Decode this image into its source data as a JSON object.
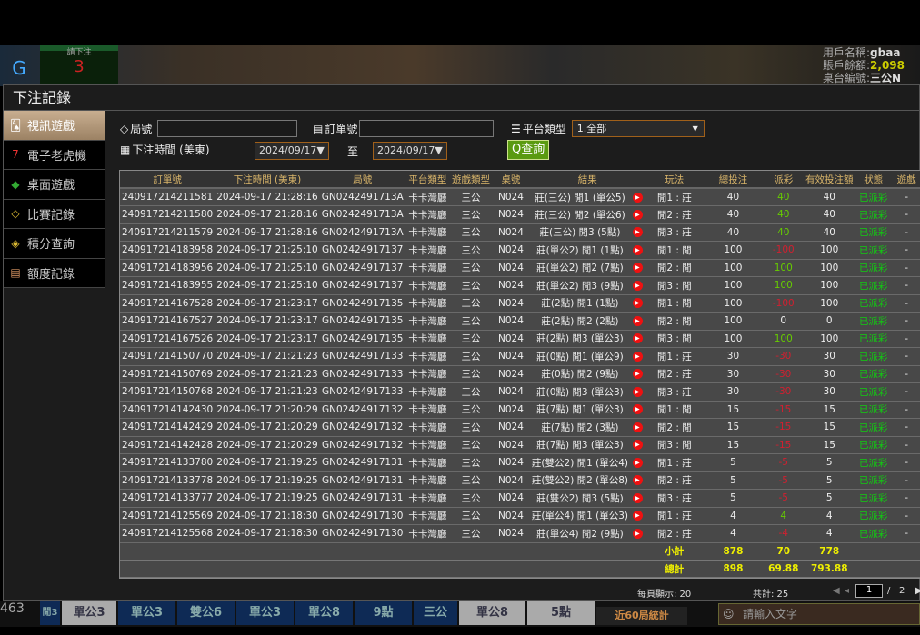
{
  "background": {
    "bet_label": "請下注",
    "bet_count": "3",
    "user_name_label": "用戶名稱:",
    "user_name": "gbaa",
    "balance_label": "賬戶餘額:",
    "balance": "2,098",
    "table_label": "桌台編號:",
    "table": "三公N"
  },
  "modal": {
    "title": "下注記錄"
  },
  "sidebar": {
    "items": [
      {
        "label": "視訊遊戲",
        "icon": "cards-icon"
      },
      {
        "label": "電子老虎機",
        "icon": "slot-777-icon"
      },
      {
        "label": "桌面遊戲",
        "icon": "dice-icon"
      },
      {
        "label": "比賽記錄",
        "icon": "ticket-icon"
      },
      {
        "label": "積分查詢",
        "icon": "diamond-icon"
      },
      {
        "label": "額度記錄",
        "icon": "document-icon"
      }
    ]
  },
  "filters": {
    "round_label": "局號",
    "order_label": "訂單號",
    "platform_label": "平台類型",
    "platform_value": "1.全部",
    "time_label": "下注時間 (美東)",
    "date_from": "2024/09/17",
    "to_label": "至",
    "date_to": "2024/09/17",
    "query_label": "查詢"
  },
  "table": {
    "headers": [
      "訂單號",
      "下注時間 (美東)",
      "局號",
      "平台類型",
      "遊戲類型",
      "桌號",
      "結果",
      "玩法",
      "總投注",
      "派彩",
      "有效投注額",
      "狀態",
      "遊戲"
    ],
    "rows": [
      [
        "240917214211581",
        "2024-09-17 21:28:16",
        "GN0242491713A",
        "卡卡灣廳",
        "三公",
        "N024",
        "莊(三公) 閒1 (單公5)",
        "閒1 : 莊",
        "40",
        "40",
        "40",
        "已派彩",
        "-"
      ],
      [
        "240917214211580",
        "2024-09-17 21:28:16",
        "GN0242491713A",
        "卡卡灣廳",
        "三公",
        "N024",
        "莊(三公) 閒2 (單公6)",
        "閒2 : 莊",
        "40",
        "40",
        "40",
        "已派彩",
        "-"
      ],
      [
        "240917214211579",
        "2024-09-17 21:28:16",
        "GN0242491713A",
        "卡卡灣廳",
        "三公",
        "N024",
        "莊(三公) 閒3 (5點)",
        "閒3 : 莊",
        "40",
        "40",
        "40",
        "已派彩",
        "-"
      ],
      [
        "240917214183958",
        "2024-09-17 21:25:10",
        "GN02424917137",
        "卡卡灣廳",
        "三公",
        "N024",
        "莊(單公2) 閒1 (1點)",
        "閒1 : 閒",
        "100",
        "-100",
        "100",
        "已派彩",
        "-"
      ],
      [
        "240917214183956",
        "2024-09-17 21:25:10",
        "GN02424917137",
        "卡卡灣廳",
        "三公",
        "N024",
        "莊(單公2) 閒2 (7點)",
        "閒2 : 閒",
        "100",
        "100",
        "100",
        "已派彩",
        "-"
      ],
      [
        "240917214183955",
        "2024-09-17 21:25:10",
        "GN02424917137",
        "卡卡灣廳",
        "三公",
        "N024",
        "莊(單公2) 閒3 (9點)",
        "閒3 : 閒",
        "100",
        "100",
        "100",
        "已派彩",
        "-"
      ],
      [
        "240917214167528",
        "2024-09-17 21:23:17",
        "GN02424917135",
        "卡卡灣廳",
        "三公",
        "N024",
        "莊(2點) 閒1 (1點)",
        "閒1 : 閒",
        "100",
        "-100",
        "100",
        "已派彩",
        "-"
      ],
      [
        "240917214167527",
        "2024-09-17 21:23:17",
        "GN02424917135",
        "卡卡灣廳",
        "三公",
        "N024",
        "莊(2點) 閒2 (2點)",
        "閒2 : 閒",
        "100",
        "0",
        "0",
        "已派彩",
        "-"
      ],
      [
        "240917214167526",
        "2024-09-17 21:23:17",
        "GN02424917135",
        "卡卡灣廳",
        "三公",
        "N024",
        "莊(2點) 閒3 (單公3)",
        "閒3 : 閒",
        "100",
        "100",
        "100",
        "已派彩",
        "-"
      ],
      [
        "240917214150770",
        "2024-09-17 21:21:23",
        "GN02424917133",
        "卡卡灣廳",
        "三公",
        "N024",
        "莊(0點) 閒1 (單公9)",
        "閒1 : 莊",
        "30",
        "-30",
        "30",
        "已派彩",
        "-"
      ],
      [
        "240917214150769",
        "2024-09-17 21:21:23",
        "GN02424917133",
        "卡卡灣廳",
        "三公",
        "N024",
        "莊(0點) 閒2 (9點)",
        "閒2 : 莊",
        "30",
        "-30",
        "30",
        "已派彩",
        "-"
      ],
      [
        "240917214150768",
        "2024-09-17 21:21:23",
        "GN02424917133",
        "卡卡灣廳",
        "三公",
        "N024",
        "莊(0點) 閒3 (單公3)",
        "閒3 : 莊",
        "30",
        "-30",
        "30",
        "已派彩",
        "-"
      ],
      [
        "240917214142430",
        "2024-09-17 21:20:29",
        "GN02424917132",
        "卡卡灣廳",
        "三公",
        "N024",
        "莊(7點) 閒1 (單公3)",
        "閒1 : 閒",
        "15",
        "-15",
        "15",
        "已派彩",
        "-"
      ],
      [
        "240917214142429",
        "2024-09-17 21:20:29",
        "GN02424917132",
        "卡卡灣廳",
        "三公",
        "N024",
        "莊(7點) 閒2 (3點)",
        "閒2 : 閒",
        "15",
        "-15",
        "15",
        "已派彩",
        "-"
      ],
      [
        "240917214142428",
        "2024-09-17 21:20:29",
        "GN02424917132",
        "卡卡灣廳",
        "三公",
        "N024",
        "莊(7點) 閒3 (單公3)",
        "閒3 : 閒",
        "15",
        "-15",
        "15",
        "已派彩",
        "-"
      ],
      [
        "240917214133780",
        "2024-09-17 21:19:25",
        "GN02424917131",
        "卡卡灣廳",
        "三公",
        "N024",
        "莊(雙公2) 閒1 (單公4)",
        "閒1 : 莊",
        "5",
        "-5",
        "5",
        "已派彩",
        "-"
      ],
      [
        "240917214133778",
        "2024-09-17 21:19:25",
        "GN02424917131",
        "卡卡灣廳",
        "三公",
        "N024",
        "莊(雙公2) 閒2 (單公8)",
        "閒2 : 莊",
        "5",
        "-5",
        "5",
        "已派彩",
        "-"
      ],
      [
        "240917214133777",
        "2024-09-17 21:19:25",
        "GN02424917131",
        "卡卡灣廳",
        "三公",
        "N024",
        "莊(雙公2) 閒3 (5點)",
        "閒3 : 莊",
        "5",
        "-5",
        "5",
        "已派彩",
        "-"
      ],
      [
        "240917214125569",
        "2024-09-17 21:18:30",
        "GN02424917130",
        "卡卡灣廳",
        "三公",
        "N024",
        "莊(單公4) 閒1 (單公3)",
        "閒1 : 莊",
        "4",
        "4",
        "4",
        "已派彩",
        "-"
      ],
      [
        "240917214125568",
        "2024-09-17 21:18:30",
        "GN02424917130",
        "卡卡灣廳",
        "三公",
        "N024",
        "莊(單公4) 閒2 (9點)",
        "閒2 : 莊",
        "4",
        "-4",
        "4",
        "已派彩",
        "-"
      ]
    ],
    "subtotal": {
      "label": "小計",
      "total": "878",
      "payout": "70",
      "valid": "778"
    },
    "grand_total": {
      "label": "總計",
      "total": "898",
      "payout": "69.88",
      "valid": "793.88"
    }
  },
  "pager": {
    "per_page": "每頁顯示: 20",
    "total": "共計: 25",
    "current": "1",
    "sep": "/",
    "pages": "2"
  },
  "bottom": {
    "prefix": "463",
    "items": [
      "閒3",
      "單公3",
      "單公3",
      "雙公6",
      "單公3",
      "單公8",
      "9點",
      "三公",
      "單公8",
      "5點"
    ],
    "stats": "近60局統計",
    "chat_placeholder": "請輸入文字"
  }
}
